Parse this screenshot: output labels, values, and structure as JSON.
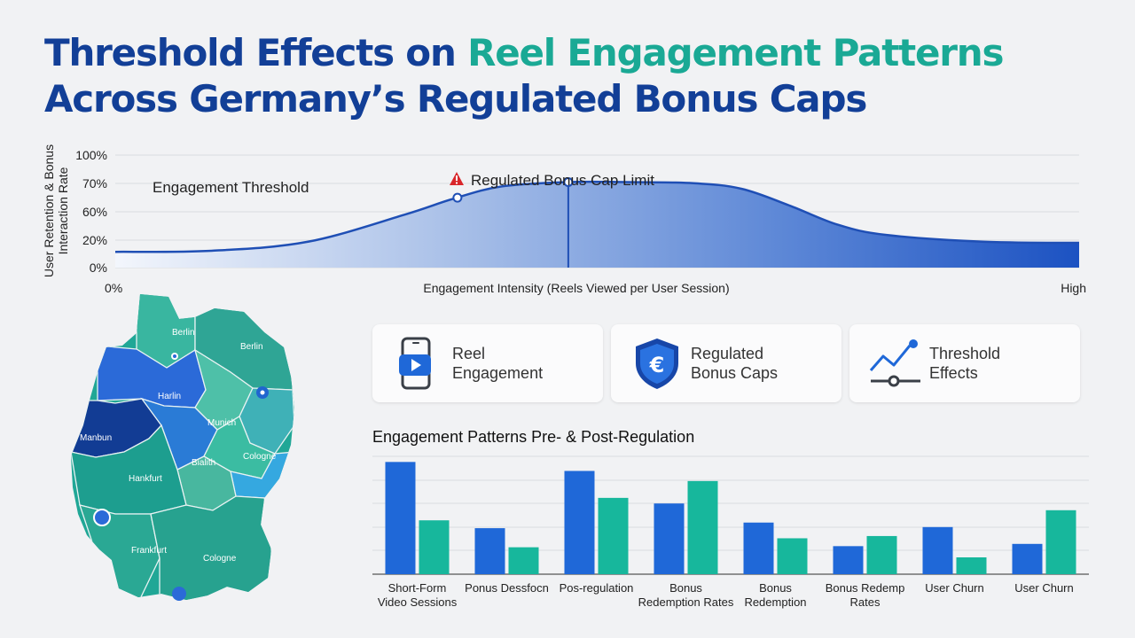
{
  "title": {
    "line1_part1": "Threshold Effects on ",
    "line1_part2": "Reel Engagement Patterns",
    "line2": "Across Germany’s Regulated Bonus Caps"
  },
  "colors": {
    "title_blue": "#123f97",
    "title_teal": "#1aa995",
    "series_blue": "#1f68d8",
    "series_teal": "#17b79c",
    "curve_line": "#1f4fb5"
  },
  "curve": {
    "y_axis_label_line1": "User Retention & Bonus",
    "y_axis_label_line2": "Interaction Rate",
    "y_ticks": [
      "100%",
      "70%",
      "60%",
      "20%",
      "0%"
    ],
    "x_axis_label": "Engagement Intensity (Reels Viewed per User Session)",
    "x_start_label": "0%",
    "x_end_label": "High",
    "engagement_threshold_label": "Engagement Threshold",
    "cap_label": "Regulated Bonus Cap Limit",
    "warning_icon": "warning-triangle-icon"
  },
  "map": {
    "labels": [
      "Berlin",
      "Berlin",
      "Harlin",
      "Manbun",
      "Munich",
      "Bialith",
      "Cologne",
      "Hankfurt",
      "Frankfurt",
      "Cologne"
    ]
  },
  "cards": [
    {
      "label": "Reel\nEngagement",
      "icon": "phone-video-icon"
    },
    {
      "label": "Regulated\nBonus Caps",
      "icon": "euro-shield-icon"
    },
    {
      "label": "Threshold\nEffects",
      "icon": "trend-line-icon"
    }
  ],
  "chart_data": [
    {
      "type": "area",
      "title": "",
      "xlabel": "Engagement Intensity (Reels Viewed per User Session)",
      "ylabel": "User Retention & Bonus Interaction Rate",
      "x": [
        0,
        0.1,
        0.2,
        0.3,
        0.35,
        0.4,
        0.47,
        0.53,
        0.6,
        0.65,
        0.7,
        0.75,
        0.8,
        0.9,
        1.0
      ],
      "y": [
        0.14,
        0.15,
        0.23,
        0.47,
        0.61,
        0.72,
        0.76,
        0.76,
        0.75,
        0.7,
        0.55,
        0.38,
        0.29,
        0.23,
        0.22
      ],
      "annotations": [
        "Engagement Threshold",
        "Regulated Bonus Cap Limit"
      ],
      "markers_x": [
        0.355,
        0.47
      ]
    },
    {
      "type": "bar",
      "title": "Engagement Patterns Pre- & Post-Regulation",
      "categories": [
        [
          "Short-Form",
          "Video Sessions"
        ],
        [
          "Ponus Dessfocn"
        ],
        [
          "Pos-regulation"
        ],
        [
          "Bonus",
          "Redemption Rates"
        ],
        [
          "Bonus",
          "Redemption"
        ],
        [
          "Bonus Redemp",
          "Rates"
        ],
        [
          "User Churn"
        ],
        [
          "User Churn"
        ]
      ],
      "series": [
        {
          "values": [
            100,
            41,
            92,
            63,
            46,
            25,
            42,
            27
          ]
        },
        {
          "values": [
            48,
            24,
            68,
            83,
            32,
            34,
            15,
            57
          ]
        }
      ],
      "ylim": [
        0,
        105
      ],
      "grid": true
    }
  ]
}
